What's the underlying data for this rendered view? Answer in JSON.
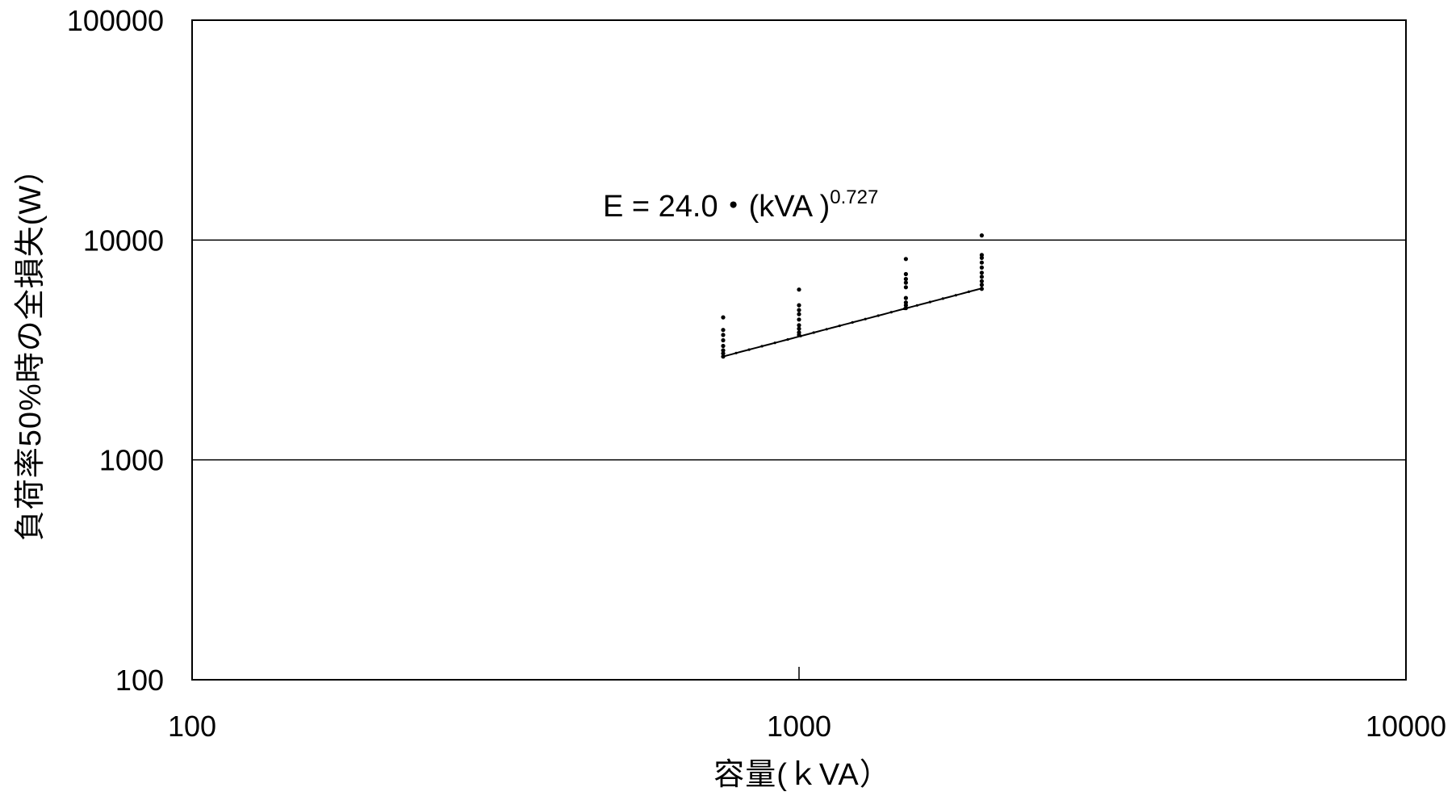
{
  "chart_data": {
    "type": "scatter",
    "xlabel": "容量(ｋVA）",
    "ylabel": "負荷率50%時の全損失(W）",
    "x_scale": "log",
    "y_scale": "log",
    "xlim": [
      100,
      10000
    ],
    "ylim": [
      100,
      100000
    ],
    "x_ticks": [
      "100",
      "1000",
      "10000"
    ],
    "y_ticks": [
      "100000",
      "10000",
      "1000",
      "100"
    ],
    "grid": {
      "horizontal_major": true,
      "vertical": false
    },
    "annotation": {
      "base": "E = 24.0・(kVA )",
      "exponent": "0.727"
    },
    "fit_line": {
      "coefficient": 24.0,
      "exponent": 0.727,
      "x_range": [
        750,
        2000
      ]
    },
    "series": [
      {
        "points": [
          [
            750,
            2950
          ],
          [
            750,
            3050
          ],
          [
            750,
            3150
          ],
          [
            750,
            3300
          ],
          [
            750,
            3500
          ],
          [
            750,
            3700
          ],
          [
            750,
            3900
          ],
          [
            750,
            4450
          ],
          [
            1000,
            3700
          ],
          [
            1000,
            3800
          ],
          [
            1000,
            3950
          ],
          [
            1000,
            4100
          ],
          [
            1000,
            4350
          ],
          [
            1000,
            4600
          ],
          [
            1000,
            4800
          ],
          [
            1000,
            5050
          ],
          [
            1000,
            5950
          ],
          [
            1500,
            4900
          ],
          [
            1500,
            5050
          ],
          [
            1500,
            5200
          ],
          [
            1500,
            5450
          ],
          [
            1500,
            6100
          ],
          [
            1500,
            6400
          ],
          [
            1500,
            6650
          ],
          [
            1500,
            7000
          ],
          [
            1500,
            8200
          ],
          [
            2000,
            6000
          ],
          [
            2000,
            6250
          ],
          [
            2000,
            6500
          ],
          [
            2000,
            6800
          ],
          [
            2000,
            7100
          ],
          [
            2000,
            7500
          ],
          [
            2000,
            7900
          ],
          [
            2000,
            8300
          ],
          [
            2000,
            8550
          ],
          [
            2000,
            10500
          ]
        ]
      }
    ]
  }
}
